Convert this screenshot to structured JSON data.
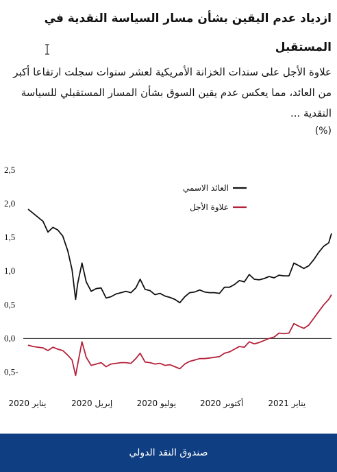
{
  "header": {
    "title": "ازدياد عدم اليقين بشأن مسار السياسة النقدية في المستقبل",
    "subtitle": "علاوة الأجل على سندات الخزانة الأمريكية لعشر سنوات سجلت ارتفاعا أكبر من العائد، مما يعكس عدم يقين السوق بشأن المسار المستقبلي للسياسة النقدية ...",
    "unit": "(%)"
  },
  "footer": {
    "label": "صندوق النقد الدولي"
  },
  "chart_data": {
    "type": "line",
    "ylim": [
      -0.7,
      2.5
    ],
    "yticks": [
      {
        "value": 2.5,
        "label": "2,5"
      },
      {
        "value": 2.0,
        "label": "2,0"
      },
      {
        "value": 1.5,
        "label": "1,5"
      },
      {
        "value": 1.0,
        "label": "1,0"
      },
      {
        "value": 0.5,
        "label": "0,5"
      },
      {
        "value": 0.0,
        "label": "0,0"
      },
      {
        "value": -0.5,
        "label": "0,5-"
      }
    ],
    "xticks": [
      {
        "date": "2020-01-01",
        "label": "يناير 2020"
      },
      {
        "date": "2020-04-01",
        "label": "إبريل 2020"
      },
      {
        "date": "2020-07-01",
        "label": "يوليو 2020"
      },
      {
        "date": "2020-10-01",
        "label": "أكتوبر 2020"
      },
      {
        "date": "2021-01-01",
        "label": "يناير 2021"
      }
    ],
    "x_end": "2021-03-05",
    "grid": false,
    "zero_line": true,
    "legend_position": "top-center",
    "series": [
      {
        "name": "العائد الاسمي",
        "color": "#111111",
        "points": [
          [
            "2020-01-02",
            1.92
          ],
          [
            "2020-01-09",
            1.86
          ],
          [
            "2020-01-16",
            1.8
          ],
          [
            "2020-01-23",
            1.74
          ],
          [
            "2020-01-30",
            1.58
          ],
          [
            "2020-02-06",
            1.65
          ],
          [
            "2020-02-13",
            1.61
          ],
          [
            "2020-02-20",
            1.52
          ],
          [
            "2020-02-27",
            1.3
          ],
          [
            "2020-03-04",
            1.02
          ],
          [
            "2020-03-09",
            0.58
          ],
          [
            "2020-03-12",
            0.82
          ],
          [
            "2020-03-18",
            1.12
          ],
          [
            "2020-03-24",
            0.84
          ],
          [
            "2020-03-31",
            0.7
          ],
          [
            "2020-04-07",
            0.74
          ],
          [
            "2020-04-14",
            0.75
          ],
          [
            "2020-04-21",
            0.6
          ],
          [
            "2020-04-28",
            0.62
          ],
          [
            "2020-05-05",
            0.66
          ],
          [
            "2020-05-12",
            0.68
          ],
          [
            "2020-05-19",
            0.7
          ],
          [
            "2020-05-26",
            0.68
          ],
          [
            "2020-06-02",
            0.75
          ],
          [
            "2020-06-08",
            0.88
          ],
          [
            "2020-06-15",
            0.73
          ],
          [
            "2020-06-22",
            0.71
          ],
          [
            "2020-06-29",
            0.65
          ],
          [
            "2020-07-06",
            0.67
          ],
          [
            "2020-07-13",
            0.63
          ],
          [
            "2020-07-20",
            0.61
          ],
          [
            "2020-07-27",
            0.58
          ],
          [
            "2020-08-03",
            0.53
          ],
          [
            "2020-08-10",
            0.62
          ],
          [
            "2020-08-17",
            0.68
          ],
          [
            "2020-08-24",
            0.69
          ],
          [
            "2020-08-31",
            0.72
          ],
          [
            "2020-09-07",
            0.69
          ],
          [
            "2020-09-14",
            0.68
          ],
          [
            "2020-09-21",
            0.68
          ],
          [
            "2020-09-28",
            0.67
          ],
          [
            "2020-10-05",
            0.76
          ],
          [
            "2020-10-12",
            0.76
          ],
          [
            "2020-10-19",
            0.8
          ],
          [
            "2020-10-26",
            0.86
          ],
          [
            "2020-11-02",
            0.84
          ],
          [
            "2020-11-09",
            0.95
          ],
          [
            "2020-11-16",
            0.88
          ],
          [
            "2020-11-23",
            0.87
          ],
          [
            "2020-11-30",
            0.89
          ],
          [
            "2020-12-07",
            0.92
          ],
          [
            "2020-12-14",
            0.9
          ],
          [
            "2020-12-21",
            0.94
          ],
          [
            "2020-12-28",
            0.93
          ],
          [
            "2021-01-04",
            0.93
          ],
          [
            "2021-01-11",
            1.12
          ],
          [
            "2021-01-18",
            1.08
          ],
          [
            "2021-01-25",
            1.04
          ],
          [
            "2021-02-01",
            1.08
          ],
          [
            "2021-02-08",
            1.17
          ],
          [
            "2021-02-15",
            1.28
          ],
          [
            "2021-02-22",
            1.37
          ],
          [
            "2021-03-01",
            1.42
          ],
          [
            "2021-03-05",
            1.56
          ]
        ]
      },
      {
        "name": "علاوة الأجل",
        "color": "#b5203a",
        "points": [
          [
            "2020-01-02",
            -0.1
          ],
          [
            "2020-01-09",
            -0.12
          ],
          [
            "2020-01-16",
            -0.13
          ],
          [
            "2020-01-23",
            -0.14
          ],
          [
            "2020-01-30",
            -0.18
          ],
          [
            "2020-02-06",
            -0.13
          ],
          [
            "2020-02-13",
            -0.16
          ],
          [
            "2020-02-20",
            -0.18
          ],
          [
            "2020-02-27",
            -0.25
          ],
          [
            "2020-03-04",
            -0.32
          ],
          [
            "2020-03-09",
            -0.55
          ],
          [
            "2020-03-12",
            -0.38
          ],
          [
            "2020-03-18",
            -0.05
          ],
          [
            "2020-03-24",
            -0.28
          ],
          [
            "2020-03-31",
            -0.4
          ],
          [
            "2020-04-07",
            -0.38
          ],
          [
            "2020-04-14",
            -0.36
          ],
          [
            "2020-04-21",
            -0.42
          ],
          [
            "2020-04-28",
            -0.38
          ],
          [
            "2020-05-05",
            -0.37
          ],
          [
            "2020-05-12",
            -0.36
          ],
          [
            "2020-05-19",
            -0.36
          ],
          [
            "2020-05-26",
            -0.37
          ],
          [
            "2020-06-02",
            -0.3
          ],
          [
            "2020-06-08",
            -0.22
          ],
          [
            "2020-06-15",
            -0.35
          ],
          [
            "2020-06-22",
            -0.36
          ],
          [
            "2020-06-29",
            -0.38
          ],
          [
            "2020-07-06",
            -0.37
          ],
          [
            "2020-07-13",
            -0.4
          ],
          [
            "2020-07-20",
            -0.39
          ],
          [
            "2020-07-27",
            -0.42
          ],
          [
            "2020-08-03",
            -0.45
          ],
          [
            "2020-08-10",
            -0.38
          ],
          [
            "2020-08-17",
            -0.34
          ],
          [
            "2020-08-24",
            -0.32
          ],
          [
            "2020-08-31",
            -0.3
          ],
          [
            "2020-09-07",
            -0.3
          ],
          [
            "2020-09-14",
            -0.29
          ],
          [
            "2020-09-21",
            -0.28
          ],
          [
            "2020-09-28",
            -0.27
          ],
          [
            "2020-10-05",
            -0.22
          ],
          [
            "2020-10-12",
            -0.2
          ],
          [
            "2020-10-19",
            -0.16
          ],
          [
            "2020-10-26",
            -0.12
          ],
          [
            "2020-11-02",
            -0.13
          ],
          [
            "2020-11-09",
            -0.05
          ],
          [
            "2020-11-16",
            -0.08
          ],
          [
            "2020-11-23",
            -0.06
          ],
          [
            "2020-11-30",
            -0.03
          ],
          [
            "2020-12-07",
            0.0
          ],
          [
            "2020-12-14",
            0.02
          ],
          [
            "2020-12-21",
            0.08
          ],
          [
            "2020-12-28",
            0.07
          ],
          [
            "2021-01-04",
            0.08
          ],
          [
            "2021-01-11",
            0.22
          ],
          [
            "2021-01-18",
            0.18
          ],
          [
            "2021-01-25",
            0.15
          ],
          [
            "2021-02-01",
            0.2
          ],
          [
            "2021-02-08",
            0.3
          ],
          [
            "2021-02-15",
            0.4
          ],
          [
            "2021-02-22",
            0.5
          ],
          [
            "2021-03-01",
            0.58
          ],
          [
            "2021-03-05",
            0.65
          ]
        ]
      }
    ]
  }
}
